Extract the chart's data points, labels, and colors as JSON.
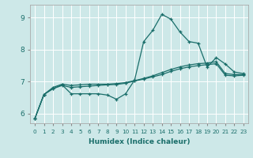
{
  "xlabel": "Humidex (Indice chaleur)",
  "ylabel": "",
  "xlim": [
    -0.5,
    23.5
  ],
  "ylim": [
    5.7,
    9.4
  ],
  "yticks": [
    6,
    7,
    8,
    9
  ],
  "xticks": [
    0,
    1,
    2,
    3,
    4,
    5,
    6,
    7,
    8,
    9,
    10,
    11,
    12,
    13,
    14,
    15,
    16,
    17,
    18,
    19,
    20,
    21,
    22,
    23
  ],
  "bg_color": "#cde8e8",
  "line_color": "#1a6e6a",
  "line1": [
    5.85,
    6.6,
    6.78,
    6.9,
    6.62,
    6.62,
    6.62,
    6.62,
    6.58,
    6.45,
    6.62,
    7.05,
    8.25,
    8.6,
    9.1,
    8.95,
    8.55,
    8.25,
    8.2,
    7.45,
    7.75,
    7.55,
    7.3,
    7.25
  ],
  "line2": [
    5.85,
    6.6,
    6.78,
    6.88,
    6.82,
    6.84,
    6.86,
    6.88,
    6.9,
    6.91,
    6.95,
    7.02,
    7.08,
    7.15,
    7.22,
    7.32,
    7.4,
    7.46,
    7.5,
    7.53,
    7.56,
    7.2,
    7.18,
    7.2
  ],
  "line3": [
    5.85,
    6.6,
    6.82,
    6.92,
    6.88,
    6.9,
    6.92,
    6.92,
    6.92,
    6.94,
    6.97,
    7.03,
    7.1,
    7.18,
    7.28,
    7.38,
    7.46,
    7.52,
    7.56,
    7.58,
    7.62,
    7.25,
    7.22,
    7.22
  ]
}
